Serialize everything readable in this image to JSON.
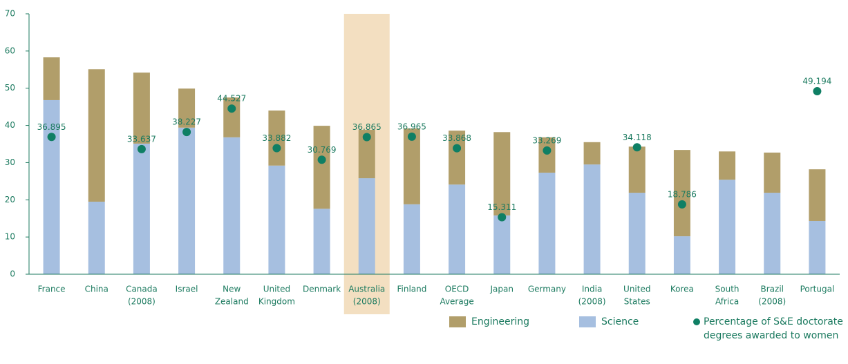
{
  "chart_data": {
    "type": "stacked_bar_dot",
    "categories": [
      [
        "France"
      ],
      [
        "China"
      ],
      [
        "Canada",
        "(2008)"
      ],
      [
        "Israel"
      ],
      [
        "New",
        "Zealand"
      ],
      [
        "United",
        "Kingdom"
      ],
      [
        "Denmark"
      ],
      [
        "Australia",
        "(2008)"
      ],
      [
        "Finland"
      ],
      [
        "OECD",
        "Average"
      ],
      [
        "Japan"
      ],
      [
        "Germany"
      ],
      [
        "India",
        "(2008)"
      ],
      [
        "United",
        "States"
      ],
      [
        "Korea"
      ],
      [
        "South",
        "Africa"
      ],
      [
        "Brazil",
        "(2008)"
      ],
      [
        "Portugal"
      ]
    ],
    "series": [
      {
        "name": "Science",
        "color": "#a6bfe0",
        "values": [
          46.8,
          19.5,
          35.1,
          39.4,
          36.8,
          29.2,
          17.6,
          25.8,
          18.8,
          24.1,
          15.8,
          27.3,
          29.5,
          21.9,
          10.2,
          25.4,
          21.9,
          14.3
        ]
      },
      {
        "name": "Engineering",
        "color": "#b19e6a",
        "values": [
          11.5,
          35.6,
          19.1,
          10.5,
          10.7,
          14.8,
          22.3,
          13.0,
          20.4,
          14.5,
          22.4,
          9.5,
          6.0,
          12.4,
          23.2,
          7.6,
          10.8,
          13.9
        ]
      },
      {
        "name": [
          "Percentage of S&E doctorate",
          "degrees awarded to women"
        ],
        "color": "#0f7f64",
        "type": "dot",
        "values": [
          36.895,
          null,
          33.637,
          38.227,
          44.527,
          33.882,
          30.769,
          36.865,
          36.965,
          33.868,
          15.311,
          33.269,
          null,
          34.118,
          18.786,
          null,
          null,
          49.194
        ]
      }
    ],
    "legend_order": [
      1,
      0,
      2
    ],
    "highlight_index": 7,
    "highlight_color": "#f3dfc1",
    "ylim": [
      0,
      70
    ],
    "yticks": [
      0,
      10,
      20,
      30,
      40,
      50,
      60,
      70
    ]
  }
}
